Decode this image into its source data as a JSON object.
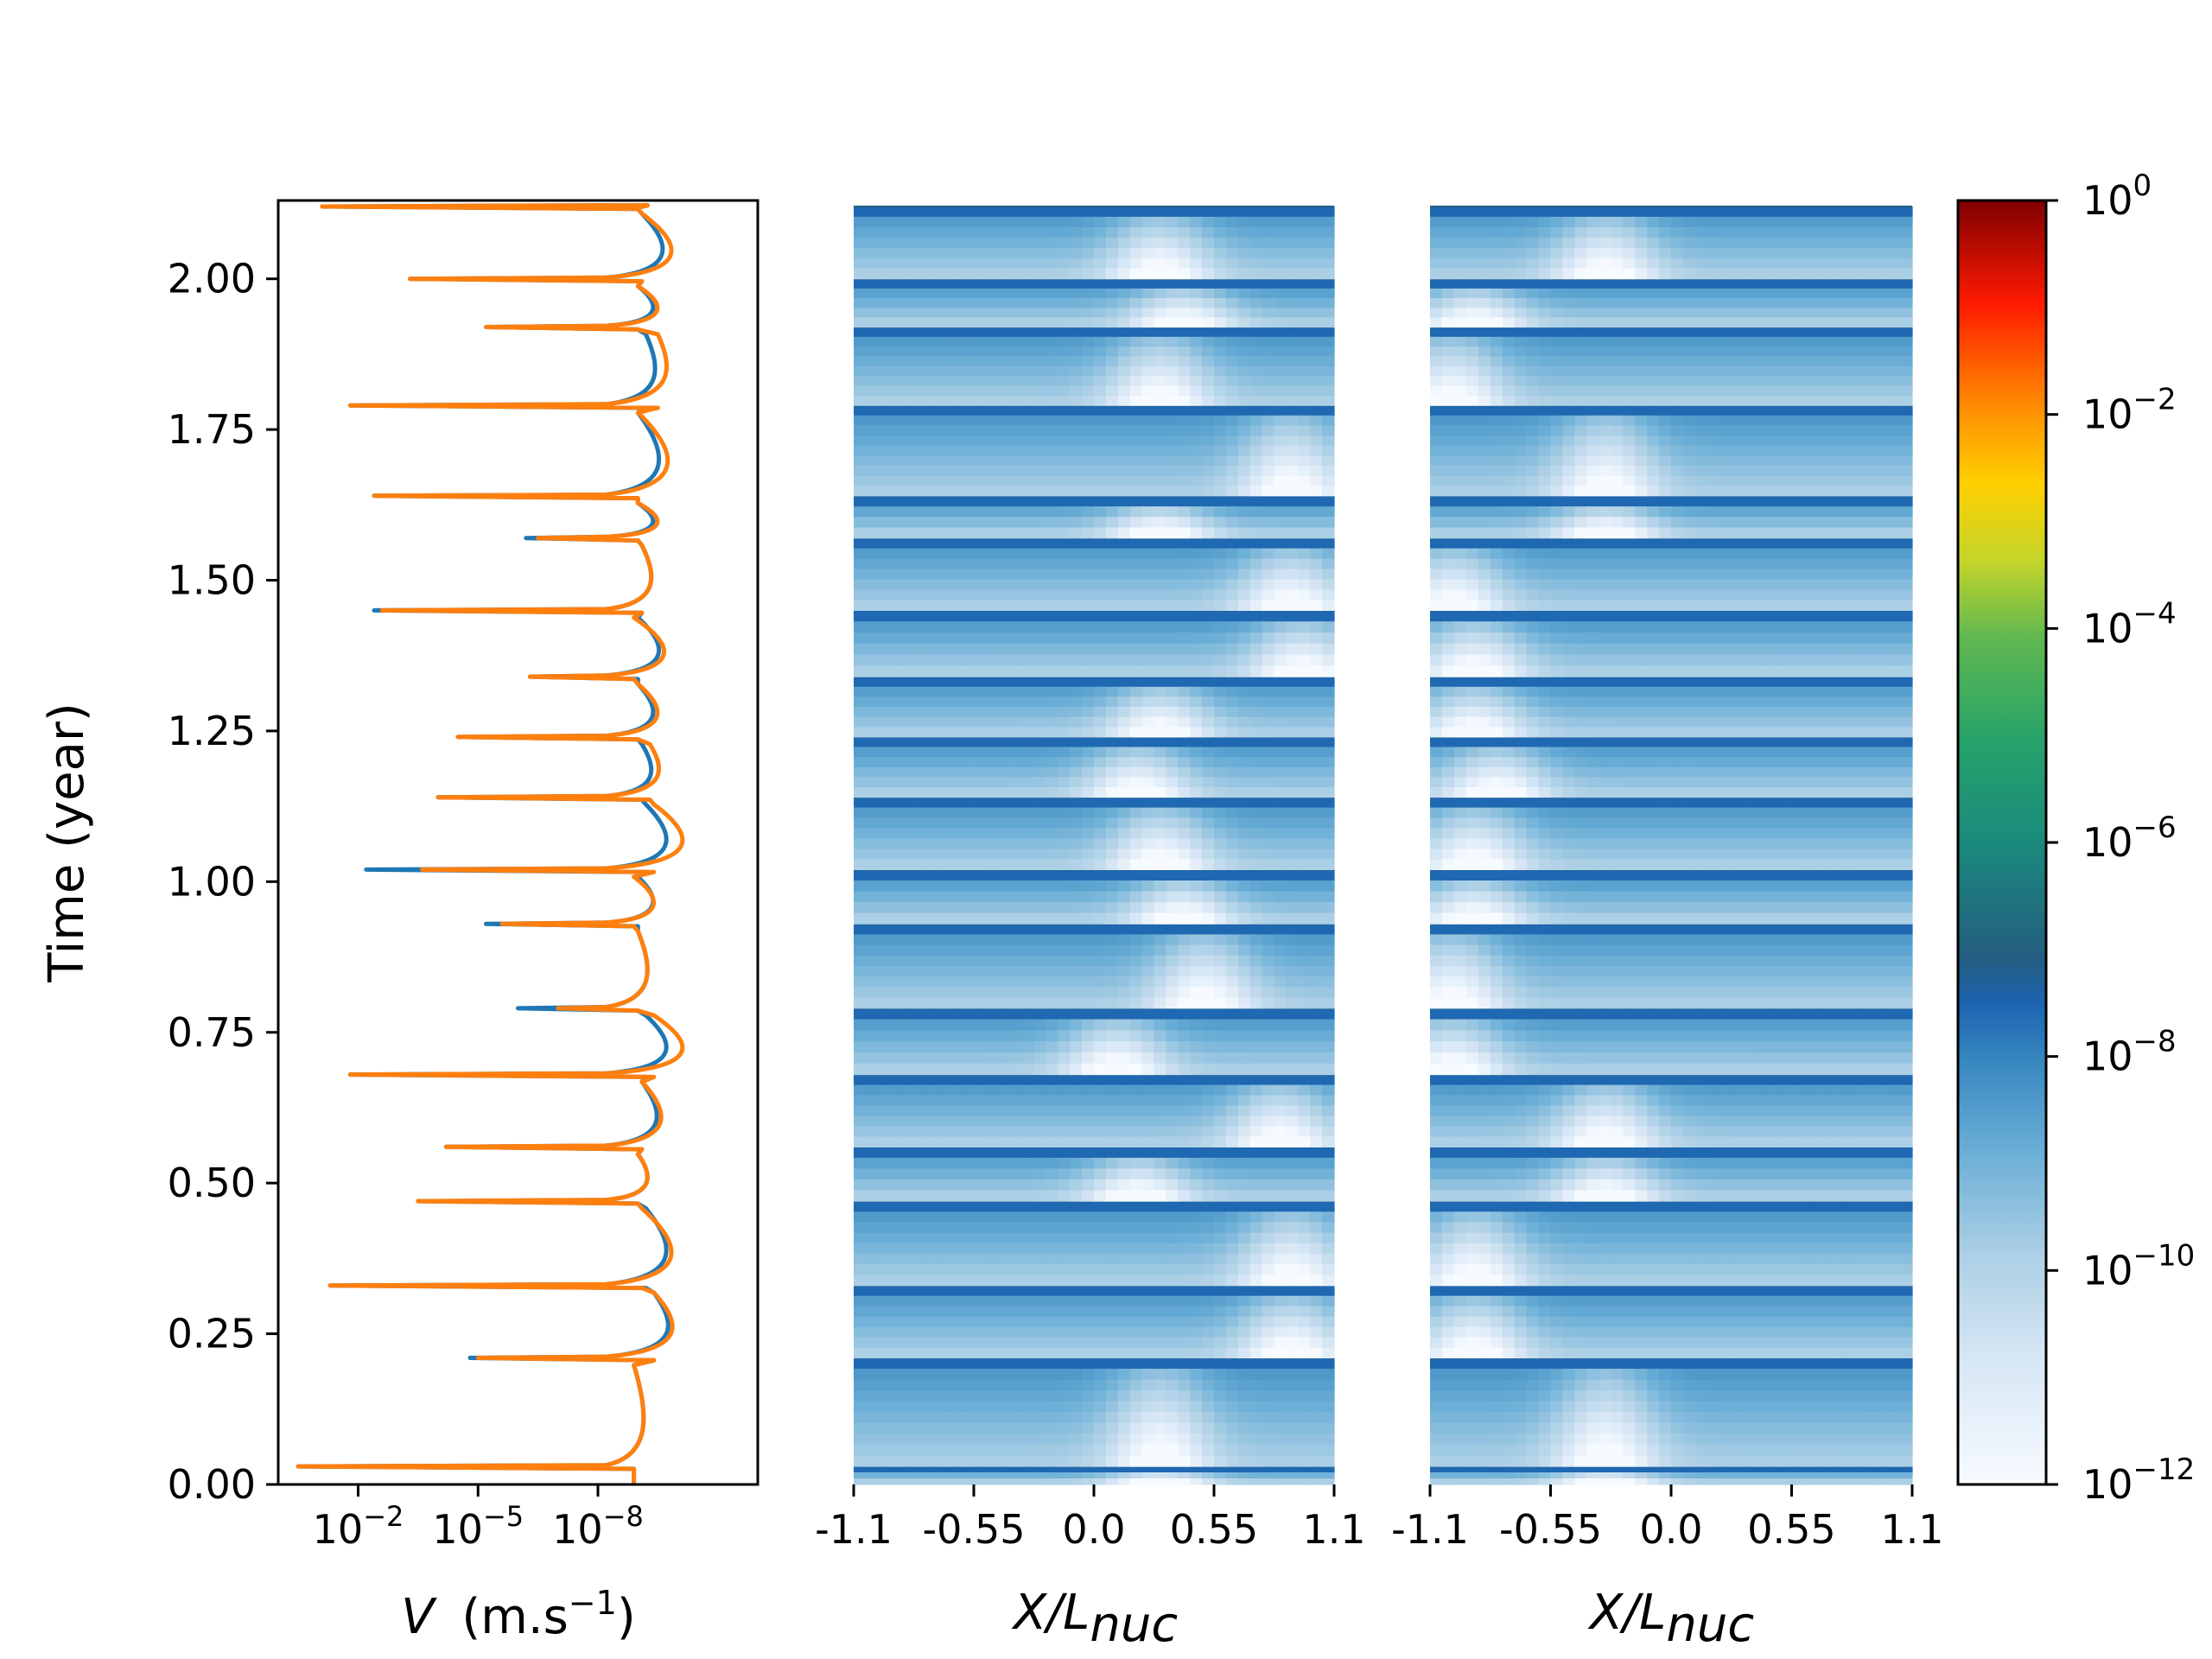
{
  "chart_data": [
    {
      "type": "line",
      "ylabel": "Time (year)",
      "xlabel": "V (m.s^-1)",
      "xlabel_parts": {
        "italic": "V",
        "unit": "(m.s",
        "sup": "−1",
        "close": ")"
      },
      "xscale": "log",
      "x_axis_inverted": true,
      "xlim": [
        1.0,
        1e-12
      ],
      "ylim": [
        0,
        2.13
      ],
      "yticks": [
        "0.00",
        "0.25",
        "0.50",
        "0.75",
        "1.00",
        "1.25",
        "1.50",
        "1.75",
        "2.00"
      ],
      "ytick_values": [
        0,
        0.25,
        0.5,
        0.75,
        1.0,
        1.25,
        1.5,
        1.75,
        2.0
      ],
      "xticks": [
        {
          "value": 0.01,
          "base": "10",
          "exp": "−2"
        },
        {
          "value": 1e-05,
          "base": "10",
          "exp": "−5"
        },
        {
          "value": 1e-08,
          "base": "10",
          "exp": "−8"
        }
      ],
      "event_times": [
        0.03,
        0.21,
        0.33,
        0.47,
        0.56,
        0.68,
        0.79,
        0.93,
        1.02,
        1.14,
        1.24,
        1.34,
        1.45,
        1.57,
        1.64,
        1.79,
        1.92,
        2.0,
        2.12
      ],
      "series": [
        {
          "color": "#1f77b4",
          "peak_exponent": [
            -0.5,
            -4.8,
            -1.3,
            -3.5,
            -4.2,
            -1.8,
            -6.0,
            -5.2,
            -2.2,
            -4.0,
            -4.5,
            -6.3,
            -2.4,
            -6.2,
            -2.4,
            -1.8,
            -5.2,
            -3.3,
            -1.1
          ],
          "quiet_exponent": [
            -8.9,
            -9.4,
            -9.2,
            -9.0,
            -9.1,
            -9.2,
            -9.0,
            -9.0,
            -9.2,
            -9.1,
            -9.0,
            -9.0,
            -9.1,
            -9.0,
            -9.0,
            -9.2,
            -9.0,
            -9.1,
            -9.0
          ]
        },
        {
          "color": "#ff7f0e",
          "peak_exponent": [
            -0.5,
            -5.0,
            -1.3,
            -3.5,
            -4.2,
            -1.8,
            -7.0,
            -5.6,
            -3.6,
            -4.0,
            -4.5,
            -6.3,
            -2.6,
            -6.5,
            -2.4,
            -1.8,
            -5.2,
            -3.3,
            -1.1
          ],
          "quiet_exponent": [
            -8.9,
            -9.4,
            -9.1,
            -9.0,
            -9.1,
            -9.4,
            -9.0,
            -8.9,
            -9.4,
            -9.3,
            -9.0,
            -8.9,
            -9.1,
            -9.0,
            -9.0,
            -9.5,
            -9.0,
            -9.1,
            -9.0
          ]
        }
      ]
    },
    {
      "type": "heatmap",
      "xlabel": "X/L_nuc",
      "xlabel_parts": {
        "italic": "X/L",
        "sub": "nuc"
      },
      "xlim": [
        -1.1,
        1.1
      ],
      "xticks": [
        "-1.1",
        "-0.55",
        "0.0",
        "0.55",
        "1.1"
      ],
      "xtick_values": [
        -1.1,
        -0.55,
        0.0,
        0.55,
        1.1
      ],
      "ylim": [
        0,
        2.13
      ],
      "value_scale": "log10",
      "band_boundaries": [
        0.0,
        0.03,
        0.21,
        0.33,
        0.47,
        0.56,
        0.68,
        0.79,
        0.93,
        1.02,
        1.14,
        1.24,
        1.34,
        1.45,
        1.57,
        1.64,
        1.79,
        1.92,
        2.0,
        2.12
      ],
      "slow_patch_centers": [
        0.3,
        0.3,
        0.9,
        0.9,
        0.2,
        0.85,
        0.1,
        0.5,
        0.4,
        0.3,
        0.2,
        0.3,
        0.95,
        0.9,
        0.3,
        0.9,
        0.3,
        0.4,
        0.3
      ]
    },
    {
      "type": "heatmap",
      "xlabel": "X/L_nuc",
      "xlabel_parts": {
        "italic": "X/L",
        "sub": "nuc"
      },
      "xlim": [
        -1.1,
        1.1
      ],
      "xticks": [
        "-1.1",
        "-0.55",
        "0.0",
        "0.55",
        "1.1"
      ],
      "xtick_values": [
        -1.1,
        -0.55,
        0.0,
        0.55,
        1.1
      ],
      "ylim": [
        0,
        2.13
      ],
      "value_scale": "log10",
      "band_boundaries": [
        0.0,
        0.03,
        0.21,
        0.33,
        0.47,
        0.56,
        0.68,
        0.79,
        0.93,
        1.02,
        1.14,
        1.24,
        1.34,
        1.45,
        1.57,
        1.64,
        1.79,
        1.92,
        2.0,
        2.12
      ],
      "slow_patch_centers": [
        -0.3,
        -0.3,
        -0.9,
        -0.9,
        -0.3,
        -0.3,
        -1.0,
        -1.0,
        -0.9,
        -0.9,
        -0.8,
        -0.9,
        -0.9,
        -1.0,
        -0.3,
        -0.3,
        -1.0,
        -0.9,
        -0.3
      ]
    },
    {
      "type": "colorbar",
      "vmin_exponent": -12,
      "vmax_exponent": 0,
      "ticks": [
        {
          "value": 1.0,
          "base": "10",
          "exp": "0"
        },
        {
          "value": 0.01,
          "base": "10",
          "exp": "−2"
        },
        {
          "value": 0.0001,
          "base": "10",
          "exp": "−4"
        },
        {
          "value": 1e-06,
          "base": "10",
          "exp": "−6"
        },
        {
          "value": 1e-08,
          "base": "10",
          "exp": "−8"
        },
        {
          "value": 1e-10,
          "base": "10",
          "exp": "−10"
        },
        {
          "value": 1e-12,
          "base": "10",
          "exp": "−12"
        }
      ],
      "colors": {
        "low": "#f4f9ff",
        "mid": "#1c64b0",
        "slip_high": "#7f0000",
        "slip_mid": "#ffa500",
        "slip_green": "#21a56e"
      }
    }
  ]
}
